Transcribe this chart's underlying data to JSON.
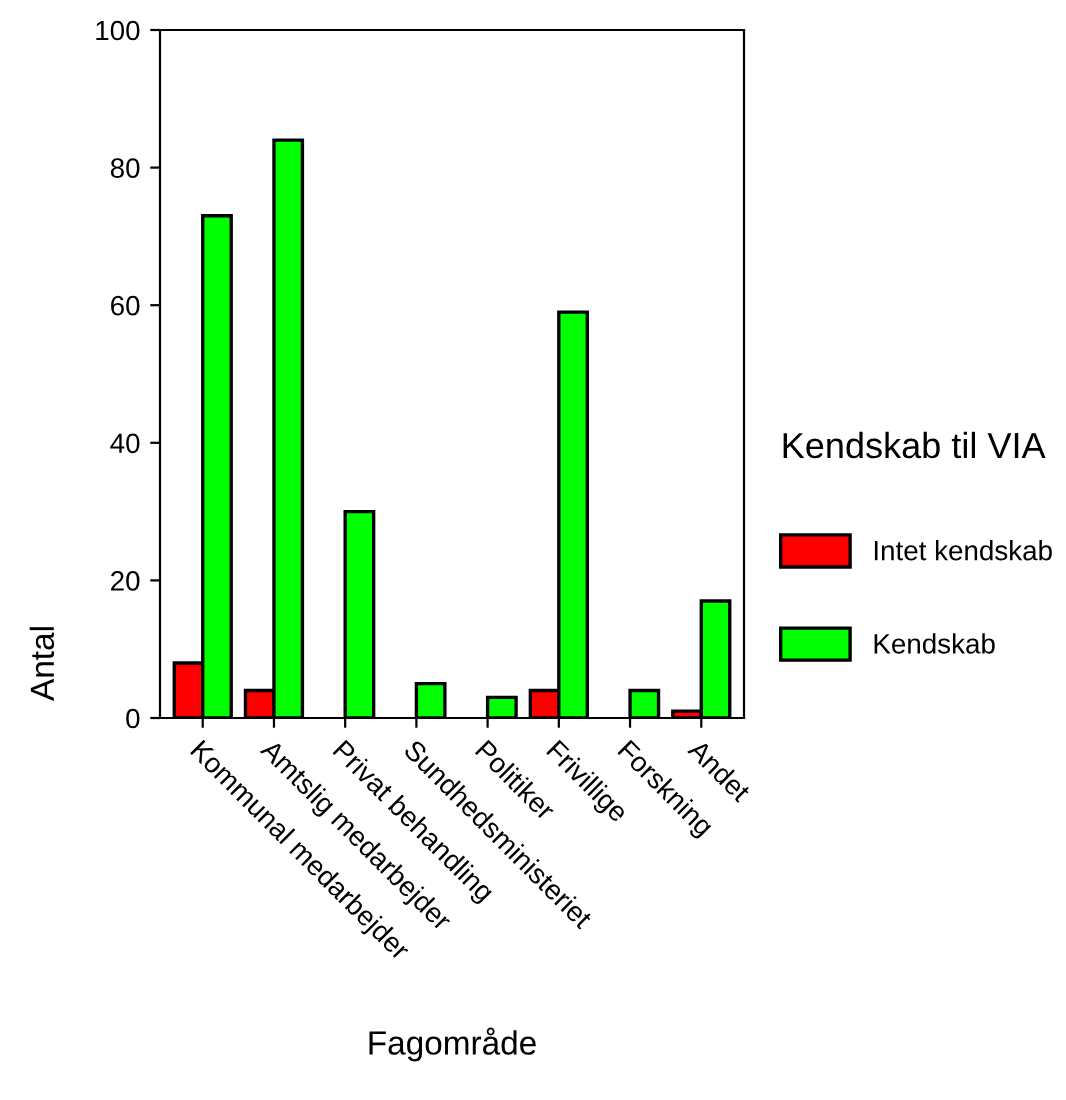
{
  "chart_data": {
    "type": "bar",
    "xlabel": "Fagområde",
    "ylabel": "Antal",
    "legend_title": "Kendskab til VIA",
    "categories": [
      "Kommunal medarbejder",
      "Amtslig medarbejder",
      "Privat behandling",
      "Sundhedsministeriet",
      "Politiker",
      "Frivillige",
      "Forskning",
      "Andet"
    ],
    "series": [
      {
        "name": "Intet kendskab",
        "color": "#ff0000",
        "values": [
          8,
          4,
          null,
          null,
          null,
          4,
          null,
          1
        ]
      },
      {
        "name": "Kendskab",
        "color": "#00ff00",
        "values": [
          73,
          84,
          30,
          5,
          3,
          59,
          4,
          17
        ]
      }
    ],
    "ylim": [
      0,
      100
    ],
    "yticks": [
      0,
      20,
      40,
      60,
      80,
      100
    ],
    "grid": false,
    "legend": "right"
  }
}
